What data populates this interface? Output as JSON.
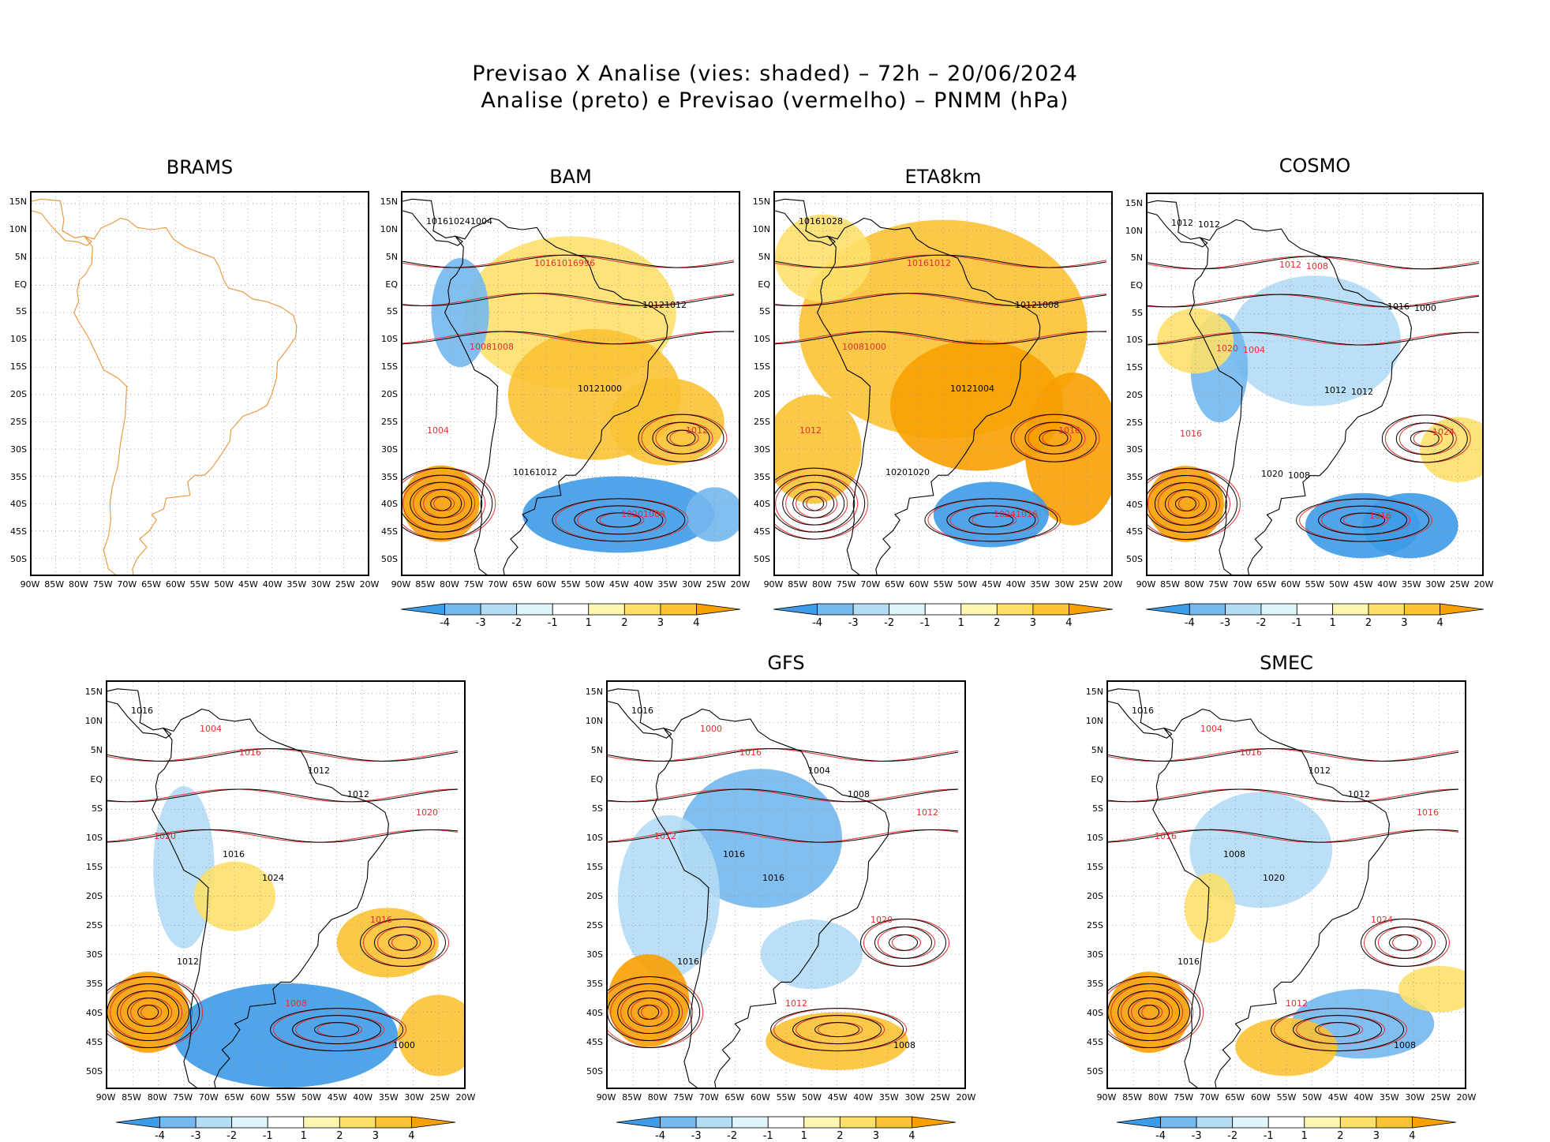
{
  "title_line1": "Previsao X Analise (vies: shaded) – 72h – 20/06/2024",
  "title_line2": "Analise (preto) e Previsao (vermelho) – PNMM (hPa)",
  "lat_labels": [
    "15N",
    "10N",
    "5N",
    "EQ",
    "5S",
    "10S",
    "15S",
    "20S",
    "25S",
    "30S",
    "35S",
    "40S",
    "45S",
    "50S"
  ],
  "lon_labels": [
    "90W",
    "85W",
    "80W",
    "75W",
    "70W",
    "65W",
    "60W",
    "55W",
    "50W",
    "45W",
    "40W",
    "35W",
    "30W",
    "25W",
    "20W"
  ],
  "colorbar_labels": [
    "-4",
    "-3",
    "-2",
    "-1",
    "1",
    "2",
    "3",
    "4"
  ],
  "colorbar_colors": [
    "#3d9be8",
    "#74b8f0",
    "#b3dcf5",
    "#dff5fb",
    "#ffffff",
    "#fff6b0",
    "#fde06a",
    "#fbc234",
    "#f8a000"
  ],
  "analysis_color": "#000000",
  "forecast_color": "#e03030",
  "map_outline_color": "#e8943a",
  "panels": [
    {
      "title": "BRAMS",
      "contour_labels": []
    },
    {
      "title": "BAM",
      "contour_labels": [
        "1016",
        "1016",
        "1012",
        "1008",
        "1012",
        "1012",
        "1016",
        "1020",
        "1024",
        "1016",
        "1012",
        "1008",
        "1000",
        "1004",
        "1012",
        "1008",
        "1004",
        "996"
      ]
    },
    {
      "title": "ETA8km",
      "contour_labels": [
        "1016",
        "1016",
        "1012",
        "1008",
        "1012",
        "1016",
        "1020",
        "1024",
        "1028",
        "1012",
        "1008",
        "1000",
        "1004",
        "1012",
        "1020",
        "1016"
      ]
    },
    {
      "title": "COSMO",
      "contour_labels": [
        "1012",
        "1012",
        "1016",
        "1020",
        "1012",
        "1024",
        "1020",
        "1016",
        "1012",
        "1008",
        "1000",
        "1004",
        "1012",
        "1016",
        "1008"
      ]
    },
    {
      "title": "",
      "contour_labels": [
        "1016",
        "1016",
        "1012",
        "1020",
        "1024",
        "1016",
        "1012",
        "1008",
        "1000",
        "1004",
        "1012",
        "1020",
        "1016"
      ]
    },
    {
      "title": "GFS",
      "contour_labels": [
        "1016",
        "1016",
        "1008",
        "1012",
        "1016",
        "1020",
        "1016",
        "1012",
        "1008",
        "1000",
        "1004",
        "1012",
        "1016"
      ]
    },
    {
      "title": "SMEC",
      "contour_labels": [
        "1016",
        "1016",
        "1012",
        "1016",
        "1020",
        "1024",
        "1016",
        "1012",
        "1008",
        "1004",
        "1012",
        "1016",
        "1008"
      ]
    }
  ]
}
